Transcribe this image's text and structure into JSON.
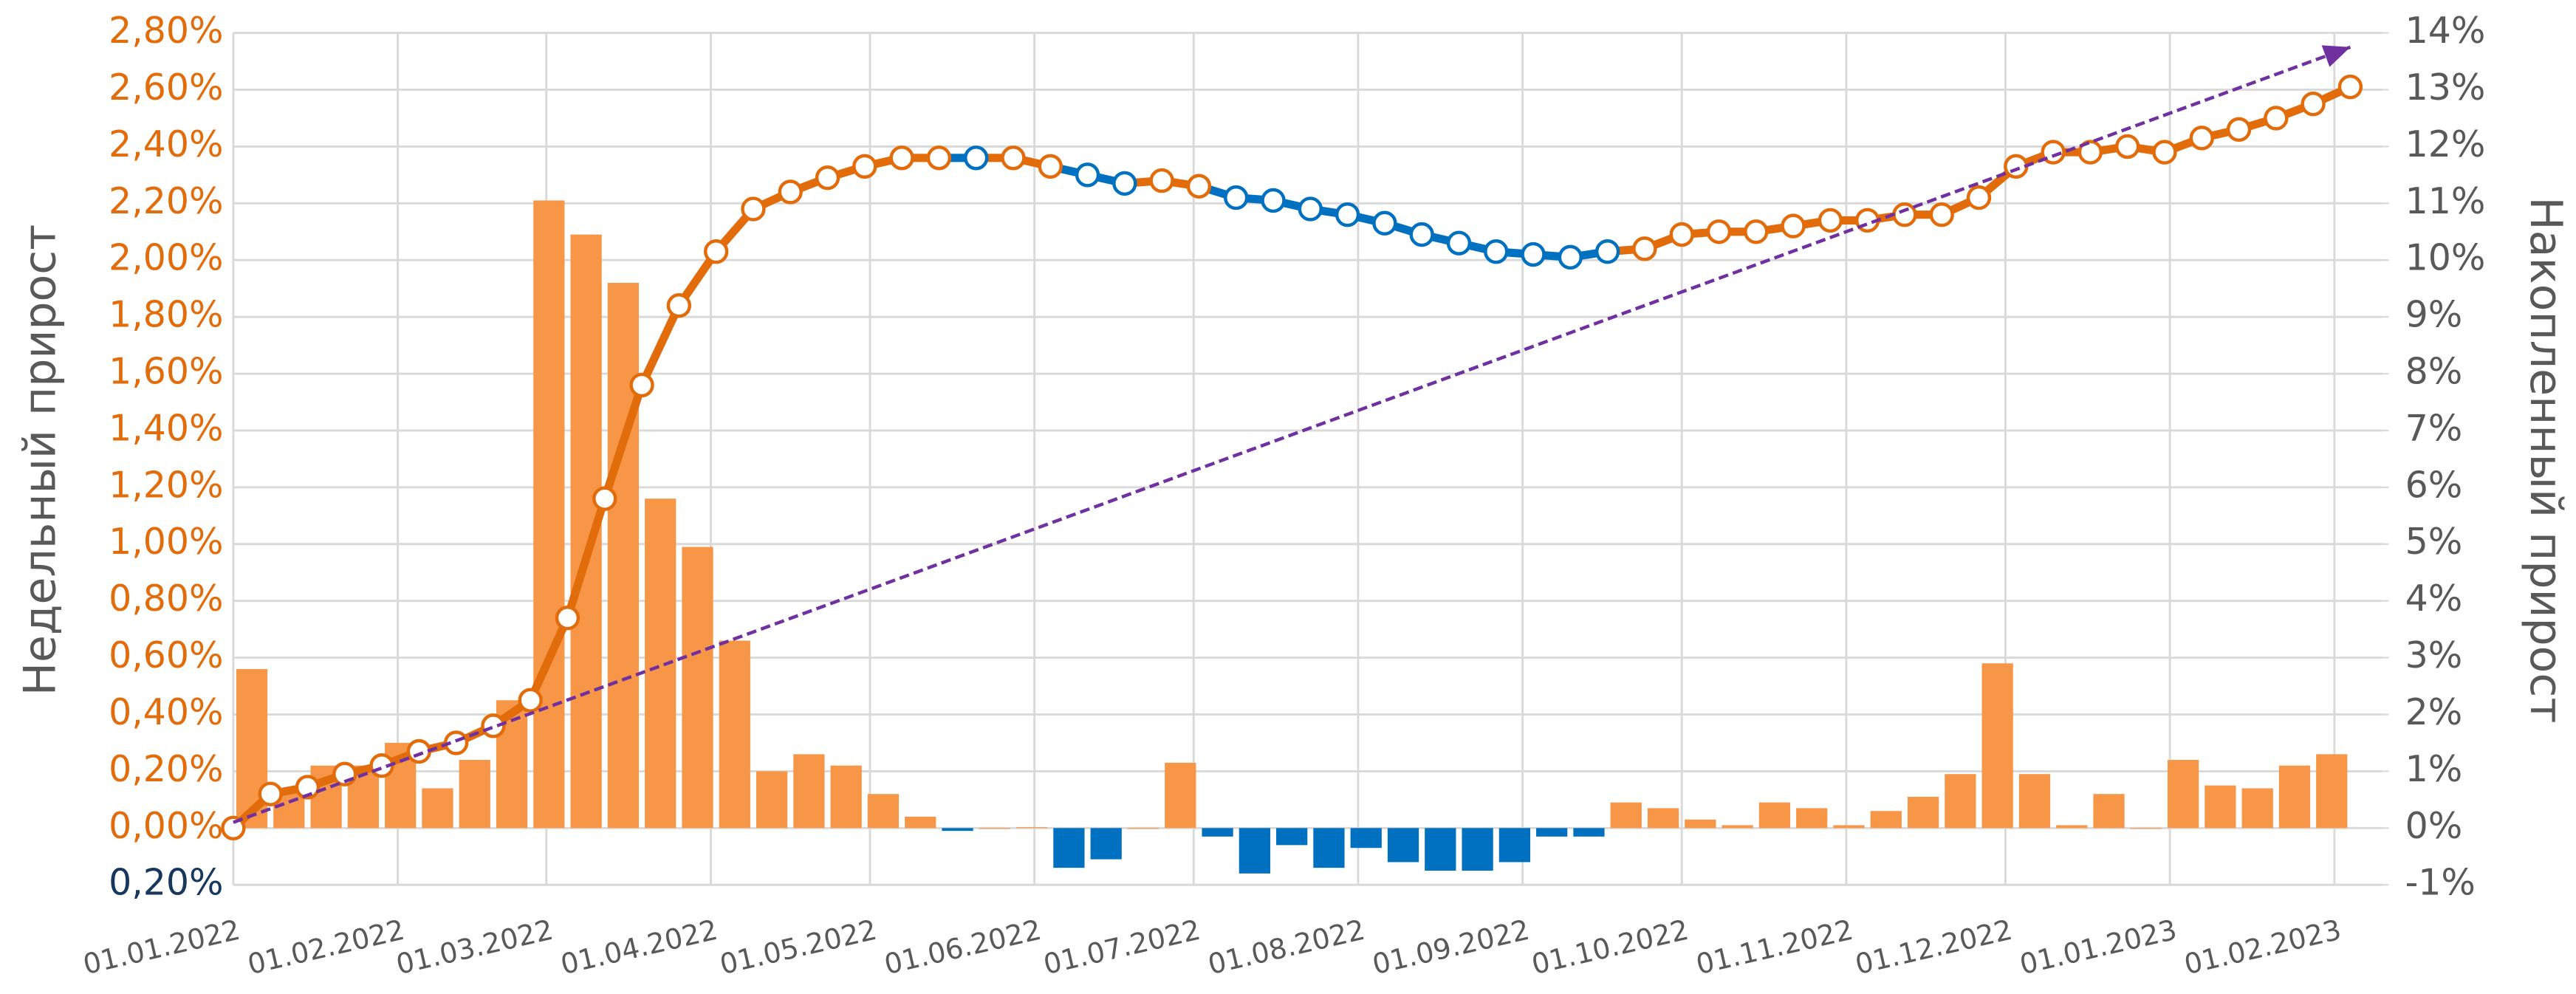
{
  "chart_data": {
    "type": "bar-line",
    "y_title": "Недельный прирост",
    "y2_title": "Накопленный прирост",
    "x": [
      "01.01.2022",
      "08.01.2022",
      "15.01.2022",
      "22.01.2022",
      "29.01.2022",
      "05.02.2022",
      "12.02.2022",
      "19.02.2022",
      "26.02.2022",
      "05.03.2022",
      "12.03.2022",
      "19.03.2022",
      "26.03.2022",
      "02.04.2022",
      "09.04.2022",
      "16.04.2022",
      "23.04.2022",
      "30.04.2022",
      "07.05.2022",
      "14.05.2022",
      "21.05.2022",
      "28.05.2022",
      "04.06.2022",
      "11.06.2022",
      "18.06.2022",
      "25.06.2022",
      "02.07.2022",
      "09.07.2022",
      "16.07.2022",
      "23.07.2022",
      "30.07.2022",
      "06.08.2022",
      "13.08.2022",
      "20.08.2022",
      "27.08.2022",
      "03.09.2022",
      "10.09.2022",
      "17.09.2022",
      "24.09.2022",
      "01.10.2022",
      "08.10.2022",
      "15.10.2022",
      "22.10.2022",
      "29.10.2022",
      "05.11.2022",
      "12.11.2022",
      "19.11.2022",
      "26.11.2022",
      "03.12.2022",
      "10.12.2022",
      "17.12.2022",
      "24.12.2022",
      "31.12.2022",
      "07.01.2023",
      "14.01.2023",
      "21.01.2023",
      "28.01.2023",
      "04.02.2023"
    ],
    "series": [
      {
        "type": "bar",
        "color": "#f79646",
        "negative_color": "#0070c0",
        "values": [
          null,
          0.56,
          0.13,
          0.22,
          0.22,
          0.3,
          0.14,
          0.24,
          0.45,
          2.21,
          2.09,
          1.92,
          1.16,
          0.99,
          0.66,
          0.2,
          0.26,
          0.22,
          0.12,
          0.04,
          -0.01,
          0.0,
          0.003,
          -0.14,
          -0.11,
          0.0,
          0.23,
          -0.03,
          -0.16,
          -0.06,
          -0.14,
          -0.07,
          -0.12,
          -0.15,
          -0.15,
          -0.12,
          -0.03,
          -0.03,
          0.09,
          0.07,
          0.03,
          0.01,
          0.09,
          0.07,
          0.01,
          0.06,
          0.11,
          0.19,
          0.58,
          0.19,
          0.01,
          0.12,
          0.0,
          0.24,
          0.15,
          0.14,
          0.22,
          0.26
        ]
      },
      {
        "type": "line",
        "axis": "y2",
        "color": "#e36c0a",
        "negative_color": "#0070c0",
        "values": [
          0,
          0.6,
          0.72,
          0.95,
          1.1,
          1.35,
          1.5,
          1.8,
          2.25,
          3.7,
          5.8,
          7.8,
          9.2,
          10.15,
          10.9,
          11.2,
          11.45,
          11.65,
          11.8,
          11.8,
          11.8,
          11.8,
          11.65,
          11.5,
          11.35,
          11.4,
          11.3,
          11.1,
          11.05,
          10.9,
          10.8,
          10.65,
          10.45,
          10.3,
          10.15,
          10.1,
          10.05,
          10.15,
          10.2,
          10.45,
          10.5,
          10.5,
          10.6,
          10.7,
          10.7,
          10.8,
          10.8,
          11.1,
          11.65,
          11.9,
          11.9,
          12.0,
          11.9,
          12.15,
          12.3,
          12.5,
          12.75,
          13.05
        ]
      }
    ],
    "trend": {
      "axis": "y2",
      "color": "#7030a0",
      "x": [
        "01.01.2022",
        "04.02.2023"
      ],
      "values": [
        0.1,
        13.75
      ]
    },
    "xlim": [
      "01.01.2022",
      "10.02.2023"
    ],
    "xticks": [
      "01.01.2022",
      "01.02.2022",
      "01.03.2022",
      "01.04.2022",
      "01.05.2022",
      "01.06.2022",
      "01.07.2022",
      "01.08.2022",
      "01.09.2022",
      "01.10.2022",
      "01.11.2022",
      "01.12.2022",
      "01.01.2023",
      "01.02.2023"
    ],
    "ylim": [
      -0.2,
      2.8
    ],
    "yticks": [
      {
        "value": -0.2,
        "label": "0,20%"
      },
      {
        "value": 0,
        "label": "0,00%"
      },
      {
        "value": 0.2,
        "label": "0,20%"
      },
      {
        "value": 0.4,
        "label": "0,40%"
      },
      {
        "value": 0.6,
        "label": "0,60%"
      },
      {
        "value": 0.8,
        "label": "0,80%"
      },
      {
        "value": 1.0,
        "label": "1,00%"
      },
      {
        "value": 1.2,
        "label": "1,20%"
      },
      {
        "value": 1.4,
        "label": "1,40%"
      },
      {
        "value": 1.6,
        "label": "1,60%"
      },
      {
        "value": 1.8,
        "label": "1,80%"
      },
      {
        "value": 2.0,
        "label": "2,00%"
      },
      {
        "value": 2.2,
        "label": "2,20%"
      },
      {
        "value": 2.4,
        "label": "2,40%"
      },
      {
        "value": 2.6,
        "label": "2,60%"
      },
      {
        "value": 2.8,
        "label": "2,80%"
      }
    ],
    "ytick_color": "#e36c0a",
    "ytick_negative_color": "#17375e",
    "y2lim": [
      -1,
      14
    ],
    "y2ticks": [
      {
        "value": -1,
        "label": "-1%"
      },
      {
        "value": 0,
        "label": "0%"
      },
      {
        "value": 1,
        "label": "1%"
      },
      {
        "value": 2,
        "label": "2%"
      },
      {
        "value": 3,
        "label": "3%"
      },
      {
        "value": 4,
        "label": "4%"
      },
      {
        "value": 5,
        "label": "5%"
      },
      {
        "value": 6,
        "label": "6%"
      },
      {
        "value": 7,
        "label": "7%"
      },
      {
        "value": 8,
        "label": "8%"
      },
      {
        "value": 9,
        "label": "9%"
      },
      {
        "value": 10,
        "label": "10%"
      },
      {
        "value": 11,
        "label": "11%"
      },
      {
        "value": 12,
        "label": "12%"
      },
      {
        "value": 13,
        "label": "13%"
      },
      {
        "value": 14,
        "label": "14%"
      }
    ],
    "grid": true
  }
}
